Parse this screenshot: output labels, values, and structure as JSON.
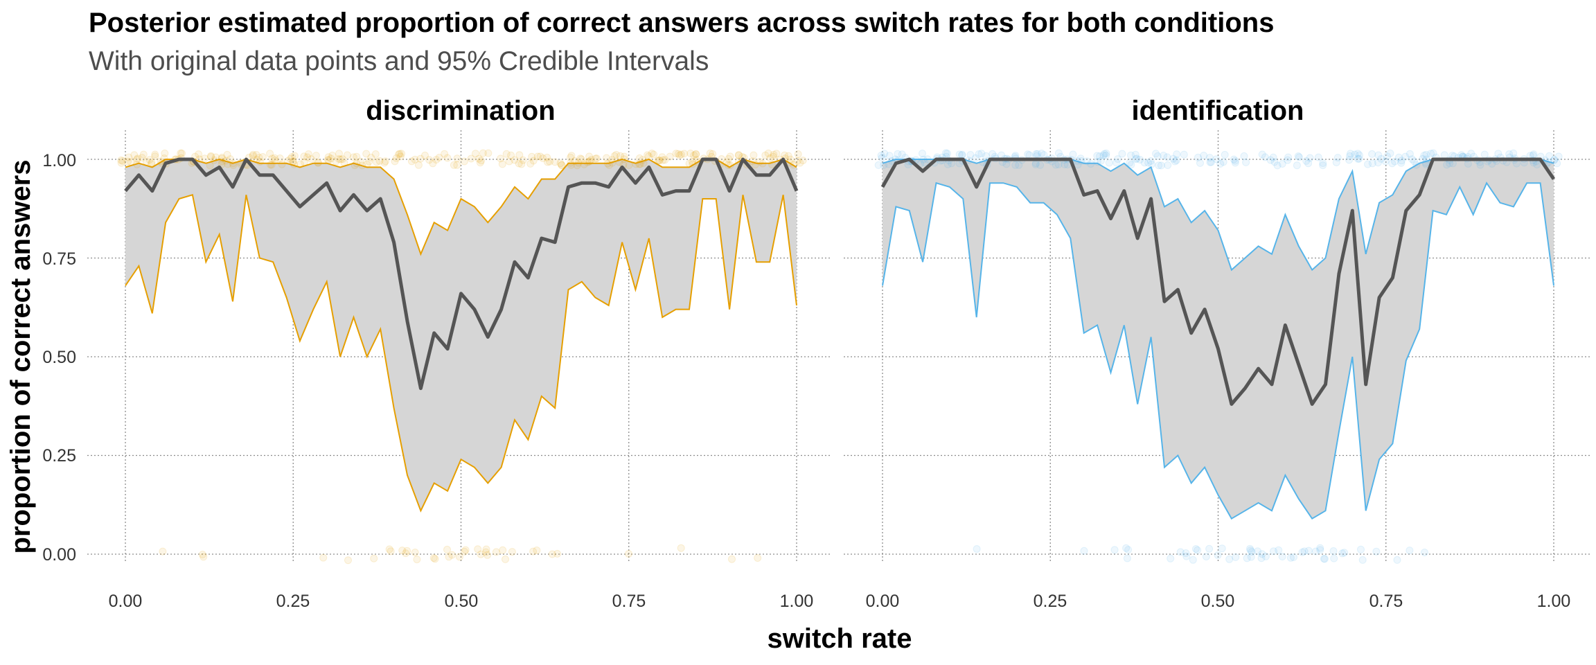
{
  "chart_data": {
    "type": "line",
    "title": "Posterior estimated proportion of correct answers across switch rates for both conditions",
    "subtitle": "With original data points and 95% Credible Intervals",
    "xlabel": "switch rate",
    "ylabel": "proportion of correct answers",
    "xlim": [
      0,
      1
    ],
    "ylim": [
      0,
      1
    ],
    "x_ticks": [
      "0.00",
      "0.25",
      "0.50",
      "0.75",
      "1.00"
    ],
    "y_ticks": [
      "0.00",
      "0.25",
      "0.50",
      "0.75",
      "1.00"
    ],
    "grid": true,
    "panels": [
      {
        "name": "discrimination",
        "color": "#E69F00",
        "x": [
          0.0,
          0.02,
          0.04,
          0.06,
          0.08,
          0.1,
          0.12,
          0.14,
          0.16,
          0.18,
          0.2,
          0.22,
          0.24,
          0.26,
          0.28,
          0.3,
          0.32,
          0.34,
          0.36,
          0.38,
          0.4,
          0.42,
          0.44,
          0.46,
          0.48,
          0.5,
          0.52,
          0.54,
          0.56,
          0.58,
          0.6,
          0.62,
          0.64,
          0.66,
          0.68,
          0.7,
          0.72,
          0.74,
          0.76,
          0.78,
          0.8,
          0.82,
          0.84,
          0.86,
          0.88,
          0.9,
          0.92,
          0.94,
          0.96,
          0.98,
          1.0
        ],
        "estimate": [
          0.92,
          0.96,
          0.92,
          0.99,
          1.0,
          1.0,
          0.96,
          0.98,
          0.93,
          1.0,
          0.96,
          0.96,
          0.92,
          0.88,
          0.91,
          0.94,
          0.87,
          0.91,
          0.87,
          0.9,
          0.79,
          0.59,
          0.42,
          0.56,
          0.52,
          0.66,
          0.62,
          0.55,
          0.62,
          0.74,
          0.7,
          0.8,
          0.79,
          0.93,
          0.94,
          0.94,
          0.93,
          0.98,
          0.94,
          0.98,
          0.91,
          0.92,
          0.92,
          1.0,
          1.0,
          0.92,
          1.0,
          0.96,
          0.96,
          1.0,
          0.92
        ],
        "lower": [
          0.68,
          0.73,
          0.61,
          0.84,
          0.9,
          0.91,
          0.74,
          0.81,
          0.64,
          0.91,
          0.75,
          0.74,
          0.65,
          0.54,
          0.62,
          0.69,
          0.5,
          0.6,
          0.5,
          0.57,
          0.37,
          0.2,
          0.11,
          0.18,
          0.16,
          0.24,
          0.22,
          0.18,
          0.22,
          0.34,
          0.29,
          0.4,
          0.37,
          0.67,
          0.69,
          0.65,
          0.63,
          0.79,
          0.67,
          0.8,
          0.6,
          0.62,
          0.62,
          0.9,
          0.9,
          0.62,
          0.91,
          0.74,
          0.74,
          0.91,
          0.63
        ],
        "upper": [
          0.98,
          0.99,
          0.98,
          1.0,
          1.0,
          1.0,
          0.99,
          1.0,
          0.99,
          1.0,
          0.99,
          0.99,
          0.99,
          0.98,
          0.99,
          0.99,
          0.98,
          0.99,
          0.98,
          0.98,
          0.95,
          0.86,
          0.76,
          0.84,
          0.82,
          0.9,
          0.88,
          0.84,
          0.88,
          0.93,
          0.9,
          0.95,
          0.95,
          0.99,
          0.99,
          0.99,
          0.99,
          1.0,
          0.99,
          1.0,
          0.98,
          0.98,
          0.98,
          1.0,
          1.0,
          0.98,
          1.0,
          0.99,
          0.99,
          1.0,
          0.98
        ]
      },
      {
        "name": "identification",
        "color": "#56B4E9",
        "x": [
          0.0,
          0.02,
          0.04,
          0.06,
          0.08,
          0.1,
          0.12,
          0.14,
          0.16,
          0.18,
          0.2,
          0.22,
          0.24,
          0.26,
          0.28,
          0.3,
          0.32,
          0.34,
          0.36,
          0.38,
          0.4,
          0.42,
          0.44,
          0.46,
          0.48,
          0.5,
          0.52,
          0.54,
          0.56,
          0.58,
          0.6,
          0.62,
          0.64,
          0.66,
          0.68,
          0.7,
          0.72,
          0.74,
          0.76,
          0.78,
          0.8,
          0.82,
          0.84,
          0.86,
          0.88,
          0.9,
          0.92,
          0.94,
          0.96,
          0.98,
          1.0
        ],
        "estimate": [
          0.93,
          0.99,
          1.0,
          0.97,
          1.0,
          1.0,
          1.0,
          0.93,
          1.0,
          1.0,
          1.0,
          1.0,
          1.0,
          1.0,
          1.0,
          0.91,
          0.92,
          0.85,
          0.92,
          0.8,
          0.9,
          0.64,
          0.67,
          0.56,
          0.62,
          0.52,
          0.38,
          0.42,
          0.47,
          0.43,
          0.58,
          0.48,
          0.38,
          0.43,
          0.71,
          0.87,
          0.43,
          0.65,
          0.7,
          0.87,
          0.91,
          1.0,
          1.0,
          1.0,
          1.0,
          1.0,
          1.0,
          1.0,
          1.0,
          1.0,
          0.95
        ],
        "lower": [
          0.68,
          0.88,
          0.87,
          0.74,
          0.94,
          0.93,
          0.9,
          0.6,
          0.94,
          0.94,
          0.93,
          0.89,
          0.89,
          0.86,
          0.8,
          0.56,
          0.58,
          0.46,
          0.58,
          0.38,
          0.55,
          0.22,
          0.25,
          0.18,
          0.22,
          0.15,
          0.09,
          0.11,
          0.13,
          0.11,
          0.2,
          0.14,
          0.09,
          0.11,
          0.31,
          0.5,
          0.11,
          0.24,
          0.28,
          0.49,
          0.57,
          0.87,
          0.86,
          0.93,
          0.86,
          0.94,
          0.89,
          0.88,
          0.94,
          0.94,
          0.68
        ],
        "upper": [
          0.99,
          1.0,
          1.0,
          1.0,
          1.0,
          1.0,
          1.0,
          0.99,
          1.0,
          1.0,
          1.0,
          1.0,
          1.0,
          1.0,
          1.0,
          0.99,
          0.99,
          0.97,
          0.99,
          0.96,
          0.98,
          0.88,
          0.9,
          0.84,
          0.87,
          0.82,
          0.72,
          0.75,
          0.78,
          0.76,
          0.86,
          0.78,
          0.72,
          0.75,
          0.9,
          0.97,
          0.76,
          0.89,
          0.91,
          0.97,
          0.99,
          1.0,
          1.0,
          1.0,
          1.0,
          1.0,
          1.0,
          1.0,
          1.0,
          1.0,
          0.99
        ]
      }
    ]
  },
  "colors": {
    "ribbon": "#d6d6d6",
    "estimate_line": "#555555"
  }
}
